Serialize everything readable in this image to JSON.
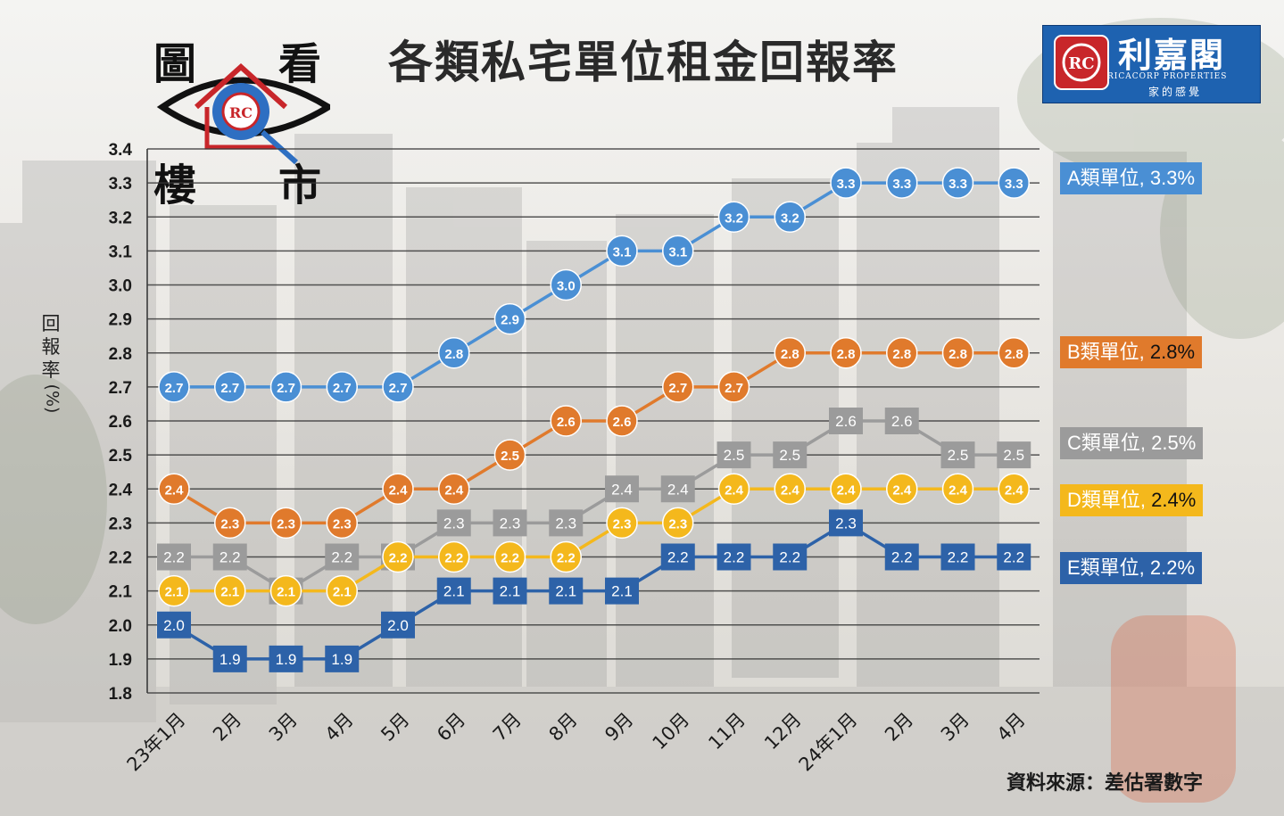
{
  "header": {
    "title": "各類私宅單位租金回報率",
    "logo_chars": [
      "圖",
      "看",
      "樓",
      "市"
    ],
    "brand_name": "利嘉閣",
    "brand_english": "RICACORP PROPERTIES",
    "brand_slogan": "家的感覺"
  },
  "footer": {
    "source": "資料來源：差估署數字"
  },
  "colors": {
    "A": "#4a8fd4",
    "B": "#e07a2c",
    "C": "#9b9b9b",
    "D": "#f4b81c",
    "E": "#2d62a8"
  },
  "chart_data": {
    "type": "line",
    "title": "各類私宅單位租金回報率",
    "ylabel": "回報率(%)",
    "xlabel": "",
    "ylim": [
      1.8,
      3.4
    ],
    "yticks": [
      "1.8",
      "1.9",
      "2.0",
      "2.1",
      "2.2",
      "2.3",
      "2.4",
      "2.5",
      "2.6",
      "2.7",
      "2.8",
      "2.9",
      "3.0",
      "3.1",
      "3.2",
      "3.3",
      "3.4"
    ],
    "grid": true,
    "legend_position": "right",
    "categories": [
      "23年1月",
      "2月",
      "3月",
      "4月",
      "5月",
      "6月",
      "7月",
      "8月",
      "9月",
      "10月",
      "11月",
      "12月",
      "24年1月",
      "2月",
      "3月",
      "4月"
    ],
    "series": [
      {
        "key": "A",
        "name": "A類單位, 3.3%",
        "marker": "circle",
        "values": [
          2.7,
          2.7,
          2.7,
          2.7,
          2.7,
          2.8,
          2.9,
          3.0,
          3.1,
          3.1,
          3.2,
          3.2,
          3.3,
          3.3,
          3.3,
          3.3
        ]
      },
      {
        "key": "B",
        "name": "B類單位, 2.8%",
        "marker": "circle",
        "values": [
          2.4,
          2.3,
          2.3,
          2.3,
          2.4,
          2.4,
          2.5,
          2.6,
          2.6,
          2.7,
          2.7,
          2.8,
          2.8,
          2.8,
          2.8,
          2.8
        ]
      },
      {
        "key": "C",
        "name": "C類單位, 2.5%",
        "marker": "square",
        "values": [
          2.2,
          2.2,
          2.1,
          2.2,
          2.2,
          2.3,
          2.3,
          2.3,
          2.4,
          2.4,
          2.5,
          2.5,
          2.6,
          2.6,
          2.5,
          2.5
        ]
      },
      {
        "key": "D",
        "name": "D類單位, 2.4%",
        "marker": "circle",
        "values": [
          2.1,
          2.1,
          2.1,
          2.1,
          2.2,
          2.2,
          2.2,
          2.2,
          2.3,
          2.3,
          2.4,
          2.4,
          2.4,
          2.4,
          2.4,
          2.4
        ]
      },
      {
        "key": "E",
        "name": "E類單位, 2.2%",
        "marker": "square",
        "values": [
          2.0,
          1.9,
          1.9,
          1.9,
          2.0,
          2.1,
          2.1,
          2.1,
          2.1,
          2.2,
          2.2,
          2.2,
          2.3,
          2.2,
          2.2,
          2.2
        ]
      }
    ]
  }
}
